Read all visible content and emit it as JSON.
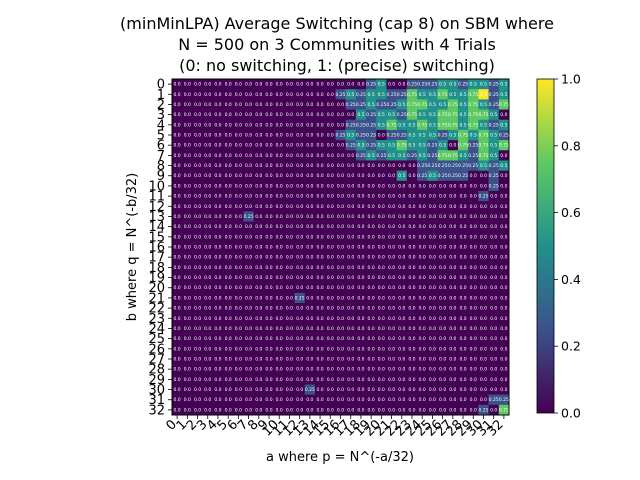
{
  "chart_data": {
    "type": "heatmap",
    "title": [
      "(minMinLPA) Average Switching (cap 8) on SBM where",
      "N = 500 on 3 Communities with 4 Trials",
      "(0: no switching, 1: (precise) switching)"
    ],
    "xlabel": "a where p = N^(-a/32)",
    "ylabel": "b where q = N^(-b/32)",
    "x_ticks": [
      "0",
      "1",
      "2",
      "3",
      "4",
      "5",
      "6",
      "7",
      "8",
      "9",
      "10",
      "11",
      "12",
      "13",
      "14",
      "15",
      "16",
      "17",
      "18",
      "19",
      "20",
      "21",
      "22",
      "23",
      "24",
      "25",
      "26",
      "27",
      "28",
      "29",
      "30",
      "31",
      "32"
    ],
    "y_ticks": [
      "0",
      "1",
      "2",
      "3",
      "4",
      "5",
      "6",
      "7",
      "8",
      "9",
      "10",
      "11",
      "12",
      "13",
      "14",
      "15",
      "16",
      "17",
      "18",
      "19",
      "20",
      "21",
      "22",
      "23",
      "24",
      "25",
      "26",
      "27",
      "28",
      "29",
      "30",
      "31",
      "32"
    ],
    "colorbar": {
      "min": 0.0,
      "max": 1.0,
      "ticks": [
        "0.0",
        "0.2",
        "0.4",
        "0.6",
        "0.8",
        "1.0"
      ],
      "colormap": "viridis"
    },
    "grid": false,
    "values": [
      [
        0,
        0,
        0,
        0,
        0,
        0,
        0,
        0,
        0,
        0,
        0,
        0,
        0,
        0,
        0,
        0,
        0,
        0,
        0,
        0.25,
        0.5,
        0,
        0,
        0.25,
        0.25,
        0.25,
        0.5,
        0.5,
        0.25,
        0.5,
        0.5,
        0.25,
        0.5
      ],
      [
        0,
        0,
        0,
        0,
        0,
        0,
        0,
        0,
        0,
        0,
        0,
        0,
        0,
        0,
        0,
        0,
        0.25,
        0.5,
        0.25,
        0.5,
        0.5,
        0.25,
        0.25,
        0.75,
        0.5,
        0.5,
        0.75,
        0.5,
        0.5,
        0.75,
        1.0,
        0.25,
        0.5
      ],
      [
        0,
        0,
        0,
        0,
        0,
        0,
        0,
        0,
        0,
        0,
        0,
        0,
        0,
        0,
        0,
        0,
        0,
        0.25,
        0.25,
        0.5,
        0.25,
        0.25,
        0.5,
        0.75,
        0.75,
        0.5,
        0.5,
        0.75,
        0.5,
        0.75,
        0.5,
        0.25,
        0.75
      ],
      [
        0,
        0,
        0,
        0,
        0,
        0,
        0,
        0,
        0,
        0,
        0,
        0,
        0,
        0,
        0,
        0,
        0,
        0,
        0.5,
        0.25,
        0.5,
        0.5,
        0.25,
        0.75,
        0.5,
        0.5,
        0.75,
        0.75,
        0.5,
        0.75,
        0.75,
        0.5,
        0
      ],
      [
        0,
        0,
        0,
        0,
        0,
        0,
        0,
        0,
        0,
        0,
        0,
        0,
        0,
        0,
        0,
        0,
        0,
        0.25,
        0.25,
        0.25,
        0.5,
        0.75,
        0.5,
        0.5,
        0.75,
        0.5,
        0.75,
        0.75,
        0.5,
        0.75,
        0.5,
        0.25,
        0.5
      ],
      [
        0,
        0,
        0,
        0,
        0,
        0,
        0,
        0,
        0,
        0,
        0,
        0,
        0,
        0,
        0,
        0,
        0.25,
        0.5,
        0.25,
        0.25,
        0,
        0.25,
        0.25,
        0.5,
        0.5,
        0.5,
        0.25,
        0.5,
        0.75,
        0.5,
        0.75,
        0.5,
        0.25
      ],
      [
        0,
        0,
        0,
        0,
        0,
        0,
        0,
        0,
        0,
        0,
        0,
        0,
        0,
        0,
        0,
        0,
        0,
        0.25,
        0.5,
        0.25,
        0.5,
        0.5,
        0.75,
        0.5,
        0.5,
        0.25,
        0.5,
        0,
        0.75,
        0.25,
        0.75,
        0.5,
        0.75
      ],
      [
        0,
        0,
        0,
        0,
        0,
        0,
        0,
        0,
        0,
        0,
        0,
        0,
        0,
        0,
        0,
        0,
        0,
        0,
        0.25,
        0.5,
        0.25,
        0.5,
        0.5,
        0.25,
        0.5,
        0.25,
        0.75,
        0.75,
        0.5,
        0.25,
        0.75,
        0.5,
        0
      ],
      [
        0,
        0,
        0,
        0,
        0,
        0,
        0,
        0,
        0,
        0,
        0,
        0,
        0,
        0,
        0,
        0,
        0,
        0,
        0,
        0,
        0,
        0,
        0,
        0,
        0.25,
        0.25,
        0.25,
        0.25,
        0.25,
        0.25,
        0.5,
        0.25,
        0.5
      ],
      [
        0,
        0,
        0,
        0,
        0,
        0,
        0,
        0,
        0,
        0,
        0,
        0,
        0,
        0,
        0,
        0,
        0,
        0,
        0,
        0,
        0,
        0,
        0.5,
        0,
        0.25,
        0.5,
        0.25,
        0.25,
        0.25,
        0,
        0,
        0.25,
        0
      ],
      [
        0,
        0,
        0,
        0,
        0,
        0,
        0,
        0,
        0,
        0,
        0,
        0,
        0,
        0,
        0,
        0,
        0,
        0,
        0,
        0,
        0,
        0,
        0,
        0,
        0,
        0,
        0,
        0,
        0,
        0,
        0,
        0.25,
        0
      ],
      [
        0,
        0,
        0,
        0,
        0,
        0,
        0,
        0,
        0,
        0,
        0,
        0,
        0,
        0,
        0,
        0,
        0,
        0,
        0,
        0,
        0,
        0,
        0,
        0,
        0,
        0,
        0,
        0,
        0,
        0,
        0.25,
        0,
        0
      ],
      [
        0,
        0,
        0,
        0,
        0,
        0,
        0,
        0,
        0,
        0,
        0,
        0,
        0,
        0,
        0,
        0,
        0,
        0,
        0,
        0,
        0,
        0,
        0,
        0,
        0,
        0,
        0,
        0,
        0,
        0,
        0,
        0,
        0
      ],
      [
        0,
        0,
        0,
        0,
        0,
        0,
        0,
        0.25,
        0,
        0,
        0,
        0,
        0,
        0,
        0,
        0,
        0,
        0,
        0,
        0,
        0,
        0,
        0,
        0,
        0,
        0,
        0,
        0,
        0,
        0,
        0,
        0,
        0
      ],
      [
        0,
        0,
        0,
        0,
        0,
        0,
        0,
        0,
        0,
        0,
        0,
        0,
        0,
        0,
        0,
        0,
        0,
        0,
        0,
        0,
        0,
        0,
        0,
        0,
        0,
        0,
        0,
        0,
        0,
        0,
        0,
        0,
        0
      ],
      [
        0,
        0,
        0,
        0,
        0,
        0,
        0,
        0,
        0,
        0,
        0,
        0,
        0,
        0,
        0,
        0,
        0,
        0,
        0,
        0,
        0,
        0,
        0,
        0,
        0,
        0,
        0,
        0,
        0,
        0,
        0,
        0,
        0
      ],
      [
        0,
        0,
        0,
        0,
        0,
        0,
        0,
        0,
        0,
        0,
        0,
        0,
        0,
        0,
        0,
        0,
        0,
        0,
        0,
        0,
        0,
        0,
        0,
        0,
        0,
        0,
        0,
        0,
        0,
        0,
        0,
        0,
        0
      ],
      [
        0,
        0,
        0,
        0,
        0,
        0,
        0,
        0,
        0,
        0,
        0,
        0,
        0,
        0,
        0,
        0,
        0,
        0,
        0,
        0,
        0,
        0,
        0,
        0,
        0,
        0,
        0,
        0,
        0,
        0,
        0,
        0,
        0
      ],
      [
        0,
        0,
        0,
        0,
        0,
        0,
        0,
        0,
        0,
        0,
        0,
        0,
        0,
        0,
        0,
        0,
        0,
        0,
        0,
        0,
        0,
        0,
        0,
        0,
        0,
        0,
        0,
        0,
        0,
        0,
        0,
        0,
        0
      ],
      [
        0,
        0,
        0,
        0,
        0,
        0,
        0,
        0,
        0,
        0,
        0,
        0,
        0,
        0,
        0,
        0,
        0,
        0,
        0,
        0,
        0,
        0,
        0,
        0,
        0,
        0,
        0,
        0,
        0,
        0,
        0,
        0,
        0
      ],
      [
        0,
        0,
        0,
        0,
        0,
        0,
        0,
        0,
        0,
        0,
        0,
        0,
        0,
        0,
        0,
        0,
        0,
        0,
        0,
        0,
        0,
        0,
        0,
        0,
        0,
        0,
        0,
        0,
        0,
        0,
        0,
        0,
        0
      ],
      [
        0,
        0,
        0,
        0,
        0,
        0,
        0,
        0,
        0,
        0,
        0,
        0,
        0.25,
        0,
        0,
        0,
        0,
        0,
        0,
        0,
        0,
        0,
        0,
        0,
        0,
        0,
        0,
        0,
        0,
        0,
        0,
        0,
        0
      ],
      [
        0,
        0,
        0,
        0,
        0,
        0,
        0,
        0,
        0,
        0,
        0,
        0,
        0,
        0,
        0,
        0,
        0,
        0,
        0,
        0,
        0,
        0,
        0,
        0,
        0,
        0,
        0,
        0,
        0,
        0,
        0,
        0,
        0
      ],
      [
        0,
        0,
        0,
        0,
        0,
        0,
        0,
        0,
        0,
        0,
        0,
        0,
        0,
        0,
        0,
        0,
        0,
        0,
        0,
        0,
        0,
        0,
        0,
        0,
        0,
        0,
        0,
        0,
        0,
        0,
        0,
        0,
        0
      ],
      [
        0,
        0,
        0,
        0,
        0,
        0,
        0,
        0,
        0,
        0,
        0,
        0,
        0,
        0,
        0,
        0,
        0,
        0,
        0,
        0,
        0,
        0,
        0,
        0,
        0,
        0,
        0,
        0,
        0,
        0,
        0,
        0,
        0
      ],
      [
        0,
        0,
        0,
        0,
        0,
        0,
        0,
        0,
        0,
        0,
        0,
        0,
        0,
        0,
        0,
        0,
        0,
        0,
        0,
        0,
        0,
        0,
        0,
        0,
        0,
        0,
        0,
        0,
        0,
        0,
        0,
        0,
        0
      ],
      [
        0,
        0,
        0,
        0,
        0,
        0,
        0,
        0,
        0,
        0,
        0,
        0,
        0,
        0,
        0,
        0,
        0,
        0,
        0,
        0,
        0,
        0,
        0,
        0,
        0,
        0,
        0,
        0,
        0,
        0,
        0,
        0,
        0
      ],
      [
        0,
        0,
        0,
        0,
        0,
        0,
        0,
        0,
        0,
        0,
        0,
        0,
        0,
        0,
        0,
        0,
        0,
        0,
        0,
        0,
        0,
        0,
        0,
        0,
        0,
        0,
        0,
        0,
        0,
        0,
        0,
        0,
        0
      ],
      [
        0,
        0,
        0,
        0,
        0,
        0,
        0,
        0,
        0,
        0,
        0,
        0,
        0,
        0,
        0,
        0,
        0,
        0,
        0,
        0,
        0,
        0,
        0,
        0,
        0,
        0,
        0,
        0,
        0,
        0,
        0,
        0,
        0
      ],
      [
        0,
        0,
        0,
        0,
        0,
        0,
        0,
        0,
        0,
        0,
        0,
        0,
        0,
        0,
        0,
        0,
        0,
        0,
        0,
        0,
        0,
        0,
        0,
        0,
        0,
        0,
        0,
        0,
        0,
        0,
        0,
        0,
        0
      ],
      [
        0,
        0,
        0,
        0,
        0,
        0,
        0,
        0,
        0,
        0,
        0,
        0,
        0,
        0.25,
        0,
        0,
        0,
        0,
        0,
        0,
        0,
        0,
        0,
        0,
        0,
        0,
        0,
        0,
        0,
        0,
        0,
        0,
        0
      ],
      [
        0,
        0,
        0,
        0,
        0,
        0,
        0,
        0,
        0,
        0,
        0,
        0,
        0,
        0,
        0,
        0,
        0,
        0,
        0,
        0,
        0,
        0,
        0,
        0,
        0,
        0,
        0,
        0,
        0,
        0,
        0,
        0.25,
        0.25
      ],
      [
        0,
        0,
        0,
        0,
        0,
        0,
        0,
        0,
        0,
        0,
        0,
        0,
        0,
        0,
        0,
        0,
        0,
        0,
        0,
        0,
        0,
        0,
        0,
        0,
        0,
        0,
        0,
        0,
        0,
        0,
        0.25,
        0,
        0.75
      ]
    ]
  }
}
